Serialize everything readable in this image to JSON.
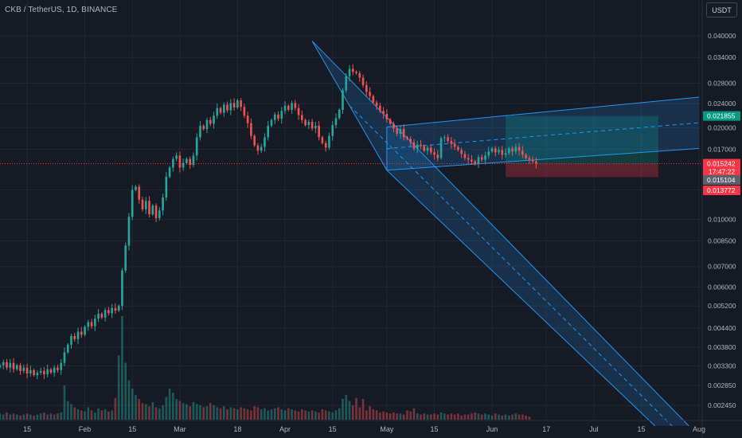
{
  "symbol": "CKB / TetherUS, 1D, BINANCE",
  "currency": "USDT",
  "chart_data": {
    "type": "candlestick",
    "title": "CKB / TetherUS, 1D, BINANCE",
    "y_scale": "log",
    "ylim": [
      0.0022,
      0.046
    ],
    "y_ticks": [
      "0.040000",
      "0.034000",
      "0.028000",
      "0.024000",
      "0.020000",
      "0.017000",
      "0.015242",
      "0.015104",
      "0.013772",
      "0.010000",
      "0.008500",
      "0.007000",
      "0.006000",
      "0.005200",
      "0.004400",
      "0.003800",
      "0.003300",
      "0.002850",
      "0.002450"
    ],
    "grid_y_ticks": [
      0.04,
      0.034,
      0.028,
      0.024,
      0.02,
      0.017,
      0.0125,
      0.01,
      0.0085,
      0.007,
      0.006,
      0.0052,
      0.0044,
      0.0038,
      0.0033,
      0.00285,
      0.00245
    ],
    "x_ticks": [
      "15",
      "Feb",
      "15",
      "Mar",
      "18",
      "Apr",
      "15",
      "May",
      "15",
      "Jun",
      "17",
      "Jul",
      "15",
      "Aug"
    ],
    "x_tick_dates": [
      "2022-01-15",
      "2022-02-01",
      "2022-02-15",
      "2022-03-01",
      "2022-03-18",
      "2022-04-01",
      "2022-04-15",
      "2022-05-01",
      "2022-05-15",
      "2022-06-01",
      "2022-06-17",
      "2022-07-01",
      "2022-07-15",
      "2022-08-01"
    ],
    "start_date": "2022-01-07",
    "end_date": "2022-08-01",
    "current_price": 0.015242,
    "countdown": "17:47:22",
    "price_labels": [
      {
        "value": 0.021855,
        "text": "0.021855",
        "color": "#089981"
      },
      {
        "value": 0.015242,
        "text": "0.015242",
        "color": "#f23645"
      },
      {
        "value": 0.015104,
        "text": "0.015104",
        "color": "#5d606b"
      },
      {
        "value": 0.013772,
        "text": "0.013772",
        "color": "#f23645"
      }
    ],
    "colors": {
      "up": "#26a69a",
      "down": "#ef5350",
      "channel": "#2196f3",
      "profit": "#089981",
      "loss": "#f23645",
      "grid": "#232733",
      "axis_text": "#b2b5be"
    },
    "closes": [
      0.00332,
      0.0034,
      0.00326,
      0.00338,
      0.00322,
      0.00332,
      0.00318,
      0.00326,
      0.00312,
      0.0032,
      0.00308,
      0.00314,
      0.00318,
      0.0031,
      0.00322,
      0.00314,
      0.00326,
      0.0032,
      0.00338,
      0.00366,
      0.00388,
      0.00414,
      0.00404,
      0.00428,
      0.00418,
      0.00444,
      0.0046,
      0.00446,
      0.00472,
      0.0049,
      0.00476,
      0.00504,
      0.00492,
      0.00512,
      0.00502,
      0.0052,
      0.0068,
      0.0082,
      0.0102,
      0.0125,
      0.0128,
      0.0116,
      0.0108,
      0.0115,
      0.0104,
      0.0111,
      0.0101,
      0.0107,
      0.0118,
      0.0138,
      0.0148,
      0.0158,
      0.0162,
      0.0148,
      0.0153,
      0.0158,
      0.0151,
      0.0162,
      0.0186,
      0.0203,
      0.0198,
      0.0212,
      0.0206,
      0.0219,
      0.0232,
      0.0224,
      0.0238,
      0.0228,
      0.0241,
      0.0233,
      0.0246,
      0.0234,
      0.0219,
      0.0207,
      0.0188,
      0.0175,
      0.0168,
      0.0173,
      0.0186,
      0.0203,
      0.0212,
      0.0221,
      0.0214,
      0.0227,
      0.0236,
      0.0229,
      0.0241,
      0.0232,
      0.022,
      0.0212,
      0.0204,
      0.0209,
      0.0199,
      0.0203,
      0.0186,
      0.0178,
      0.0172,
      0.0188,
      0.0204,
      0.0215,
      0.0229,
      0.0265,
      0.0295,
      0.0312,
      0.0305,
      0.0302,
      0.0292,
      0.0276,
      0.0262,
      0.0254,
      0.0242,
      0.0236,
      0.0227,
      0.0222,
      0.0213,
      0.0206,
      0.0199,
      0.0191,
      0.0198,
      0.0186,
      0.0184,
      0.0179,
      0.0171,
      0.0176,
      0.0174,
      0.0168,
      0.0172,
      0.0166,
      0.0163,
      0.0159,
      0.0185,
      0.0186,
      0.0181,
      0.0177,
      0.0173,
      0.0169,
      0.0164,
      0.0159,
      0.0157,
      0.0155,
      0.0152,
      0.016,
      0.0157,
      0.0162,
      0.0167,
      0.0171,
      0.0166,
      0.0169,
      0.0163,
      0.0165,
      0.0171,
      0.0167,
      0.0173,
      0.0168,
      0.0163,
      0.0159,
      0.0157,
      0.0155,
      0.01524
    ],
    "volumes": [
      0.06,
      0.05,
      0.07,
      0.05,
      0.06,
      0.05,
      0.04,
      0.05,
      0.06,
      0.05,
      0.04,
      0.05,
      0.06,
      0.07,
      0.05,
      0.06,
      0.05,
      0.06,
      0.07,
      0.33,
      0.18,
      0.15,
      0.12,
      0.1,
      0.09,
      0.08,
      0.12,
      0.09,
      0.07,
      0.11,
      0.09,
      0.1,
      0.08,
      0.09,
      0.21,
      0.62,
      1.0,
      0.55,
      0.38,
      0.3,
      0.24,
      0.2,
      0.16,
      0.15,
      0.13,
      0.17,
      0.12,
      0.11,
      0.14,
      0.22,
      0.3,
      0.26,
      0.2,
      0.18,
      0.16,
      0.15,
      0.13,
      0.17,
      0.15,
      0.14,
      0.12,
      0.13,
      0.16,
      0.14,
      0.12,
      0.11,
      0.13,
      0.1,
      0.12,
      0.11,
      0.1,
      0.12,
      0.11,
      0.1,
      0.09,
      0.13,
      0.12,
      0.1,
      0.11,
      0.09,
      0.1,
      0.11,
      0.12,
      0.1,
      0.09,
      0.11,
      0.1,
      0.09,
      0.08,
      0.1,
      0.09,
      0.08,
      0.09,
      0.08,
      0.07,
      0.1,
      0.09,
      0.08,
      0.07,
      0.09,
      0.11,
      0.2,
      0.24,
      0.18,
      0.14,
      0.21,
      0.12,
      0.2,
      0.09,
      0.13,
      0.1,
      0.09,
      0.07,
      0.08,
      0.07,
      0.06,
      0.07,
      0.06,
      0.06,
      0.05,
      0.09,
      0.08,
      0.11,
      0.06,
      0.05,
      0.06,
      0.05,
      0.05,
      0.06,
      0.05,
      0.07,
      0.06,
      0.05,
      0.06,
      0.05,
      0.06,
      0.04,
      0.05,
      0.05,
      0.06,
      0.07,
      0.06,
      0.05,
      0.06,
      0.05,
      0.04,
      0.06,
      0.05,
      0.04,
      0.05,
      0.04,
      0.05,
      0.06,
      0.05,
      0.05,
      0.04,
      0.03
    ],
    "descending_channel": {
      "upper_start": [
        "2022-04-09",
        0.0385
      ],
      "upper_end": [
        "2022-07-29",
        0.0021
      ],
      "lower_start": [
        "2022-05-01",
        0.0145
      ],
      "lower_end": [
        "2022-07-19",
        0.0021
      ]
    },
    "ascending_channel": {
      "lower_start": [
        "2022-05-01",
        0.0145
      ],
      "lower_end": [
        "2022-08-01",
        0.0171
      ],
      "upper_start": [
        "2022-05-01",
        0.0201
      ],
      "upper_end": [
        "2022-08-01",
        0.0252
      ]
    },
    "long_position": {
      "start": "2022-06-05",
      "end": "2022-07-20",
      "entry": 0.015242,
      "target": 0.021855,
      "stop": 0.013772
    }
  }
}
